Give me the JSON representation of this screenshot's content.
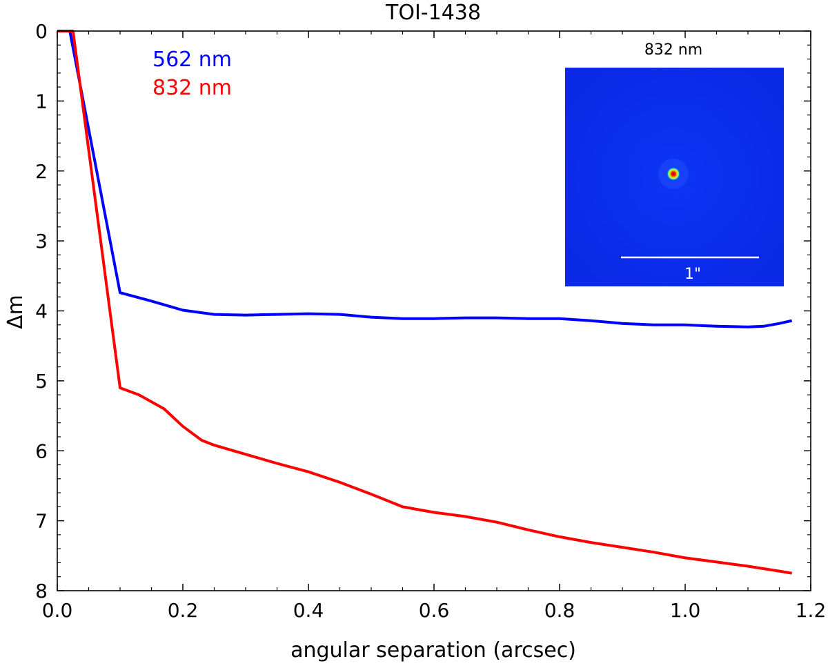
{
  "chart_data": {
    "type": "line",
    "title": "TOI-1438",
    "xlabel": "angular separation (arcsec)",
    "ylabel": "Δm",
    "xlim": [
      0.0,
      1.2
    ],
    "ylim": [
      8,
      0
    ],
    "y_axis_inverted": true,
    "grid": false,
    "x_ticks": [
      "0.0",
      "0.2",
      "0.4",
      "0.6",
      "0.8",
      "1.0",
      "1.2"
    ],
    "y_ticks": [
      "0",
      "1",
      "2",
      "3",
      "4",
      "5",
      "6",
      "7",
      "8"
    ],
    "legend_placement": "top-left",
    "series": [
      {
        "name": "562 nm",
        "color": "#0000ff",
        "x": [
          0.0,
          0.02,
          0.1,
          0.15,
          0.2,
          0.25,
          0.3,
          0.35,
          0.4,
          0.45,
          0.5,
          0.55,
          0.6,
          0.65,
          0.7,
          0.75,
          0.8,
          0.85,
          0.9,
          0.95,
          1.0,
          1.05,
          1.1,
          1.125,
          1.15,
          1.17
        ],
        "y": [
          0.0,
          0.0,
          3.74,
          3.86,
          3.99,
          4.05,
          4.06,
          4.05,
          4.04,
          4.05,
          4.09,
          4.11,
          4.11,
          4.1,
          4.1,
          4.11,
          4.11,
          4.14,
          4.18,
          4.2,
          4.2,
          4.22,
          4.23,
          4.22,
          4.18,
          4.14
        ]
      },
      {
        "name": "832 nm",
        "color": "#ff0000",
        "x": [
          0.0,
          0.025,
          0.1,
          0.13,
          0.17,
          0.2,
          0.23,
          0.25,
          0.3,
          0.35,
          0.4,
          0.45,
          0.5,
          0.55,
          0.6,
          0.65,
          0.7,
          0.75,
          0.8,
          0.85,
          0.9,
          0.95,
          1.0,
          1.05,
          1.1,
          1.15,
          1.17
        ],
        "y": [
          0.0,
          0.0,
          5.1,
          5.2,
          5.4,
          5.65,
          5.85,
          5.92,
          6.05,
          6.18,
          6.3,
          6.45,
          6.62,
          6.8,
          6.88,
          6.94,
          7.02,
          7.13,
          7.23,
          7.31,
          7.38,
          7.45,
          7.53,
          7.59,
          7.65,
          7.72,
          7.75
        ]
      }
    ],
    "inset": {
      "title": "832 nm",
      "scale_bar_label": "1\"",
      "background_color": "#0a2cf0",
      "source_color": "#cc0000"
    }
  }
}
